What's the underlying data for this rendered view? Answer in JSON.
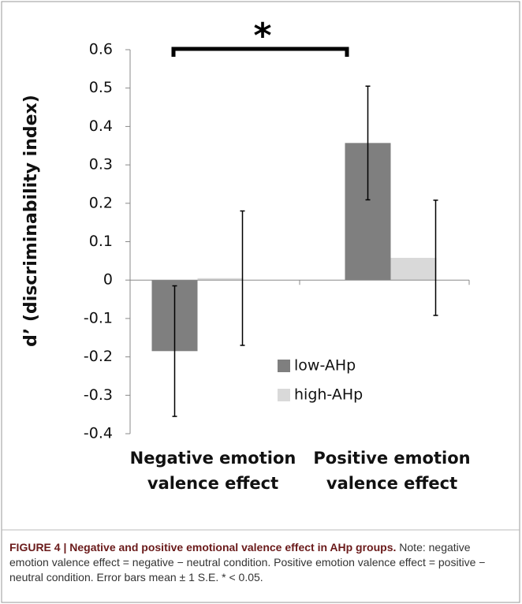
{
  "chart_data": {
    "type": "bar",
    "y_label": "d’ (discriminability index)",
    "annotation": "*",
    "categories": [
      "Negative emotion valence effect",
      "Positive emotion valence effect"
    ],
    "series": [
      {
        "name": "low-AHp",
        "color": "#7f7f7f",
        "values": [
          -0.185,
          0.357
        ],
        "errors": [
          0.17,
          0.148
        ]
      },
      {
        "name": "high-AHp",
        "color": "#d9d9d9",
        "values": [
          0.005,
          0.058
        ],
        "errors": [
          0.175,
          0.15
        ]
      }
    ],
    "ylim": [
      -0.4,
      0.6
    ],
    "yticks": [
      -0.4,
      -0.3,
      -0.2,
      -0.1,
      0,
      0.1,
      0.2,
      0.3,
      0.4,
      0.5,
      0.6
    ],
    "legend": "lower-right"
  },
  "caption": {
    "title": "FIGURE 4 | Negative and positive emotional valence effect in AHp groups.",
    "text": "Note: negative emotion valence effect = negative − neutral condition. Positive emotion valence effect = positive − neutral condition. Error bars mean ± 1 S.E. * < 0.05."
  }
}
